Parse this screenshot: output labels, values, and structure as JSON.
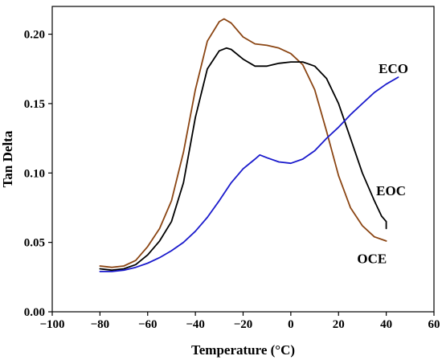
{
  "chart_data": {
    "type": "line",
    "title": "",
    "xlabel": "Temperature (°C)",
    "ylabel": "Tan Delta",
    "xlim": [
      -100,
      60
    ],
    "ylim": [
      0,
      0.22
    ],
    "xticks": [
      -100,
      -80,
      -60,
      -40,
      -20,
      0,
      20,
      40,
      60
    ],
    "xtick_labels": [
      "−100",
      "−80",
      "−60",
      "−40",
      "−20",
      "0",
      "20",
      "40",
      "60"
    ],
    "yticks": [
      0,
      0.05,
      0.1,
      0.15,
      0.2
    ],
    "ytick_labels": [
      "0.00",
      "0.05",
      "0.10",
      "0.15",
      "0.20"
    ],
    "grid": false,
    "legend": "none",
    "series": [
      {
        "name": "OCE",
        "color": "#8b4513",
        "x": [
          -80,
          -75,
          -70,
          -65,
          -60,
          -55,
          -50,
          -45,
          -40,
          -35,
          -30,
          -28,
          -25,
          -20,
          -15,
          -10,
          -5,
          0,
          5,
          10,
          15,
          20,
          25,
          30,
          35,
          40
        ],
        "y": [
          0.033,
          0.032,
          0.033,
          0.037,
          0.047,
          0.06,
          0.08,
          0.115,
          0.16,
          0.195,
          0.209,
          0.211,
          0.208,
          0.198,
          0.193,
          0.192,
          0.19,
          0.186,
          0.178,
          0.16,
          0.13,
          0.098,
          0.075,
          0.062,
          0.054,
          0.051
        ]
      },
      {
        "name": "EOC",
        "color": "#000000",
        "x": [
          -80,
          -75,
          -70,
          -65,
          -60,
          -55,
          -50,
          -45,
          -40,
          -35,
          -30,
          -27,
          -25,
          -20,
          -15,
          -10,
          -5,
          0,
          5,
          10,
          15,
          20,
          25,
          30,
          35,
          38,
          40,
          40
        ],
        "y": [
          0.031,
          0.03,
          0.031,
          0.034,
          0.041,
          0.051,
          0.065,
          0.093,
          0.14,
          0.175,
          0.188,
          0.19,
          0.189,
          0.182,
          0.177,
          0.177,
          0.179,
          0.18,
          0.18,
          0.177,
          0.168,
          0.15,
          0.125,
          0.1,
          0.08,
          0.069,
          0.065,
          0.06
        ]
      },
      {
        "name": "ECO",
        "color": "#1a1acc",
        "x": [
          -80,
          -75,
          -70,
          -65,
          -60,
          -55,
          -50,
          -45,
          -40,
          -35,
          -30,
          -25,
          -20,
          -15,
          -13,
          -10,
          -5,
          0,
          5,
          10,
          15,
          20,
          25,
          30,
          35,
          40,
          45
        ],
        "y": [
          0.029,
          0.029,
          0.03,
          0.032,
          0.035,
          0.039,
          0.044,
          0.05,
          0.058,
          0.068,
          0.08,
          0.093,
          0.103,
          0.11,
          0.113,
          0.111,
          0.108,
          0.107,
          0.11,
          0.116,
          0.125,
          0.133,
          0.142,
          0.15,
          0.158,
          0.164,
          0.169
        ]
      }
    ],
    "annotations": [
      {
        "text": "ECO",
        "x": 43,
        "y": 0.172
      },
      {
        "text": "EOC",
        "x": 42,
        "y": 0.084
      },
      {
        "text": "OCE",
        "x": 34,
        "y": 0.035
      }
    ]
  }
}
